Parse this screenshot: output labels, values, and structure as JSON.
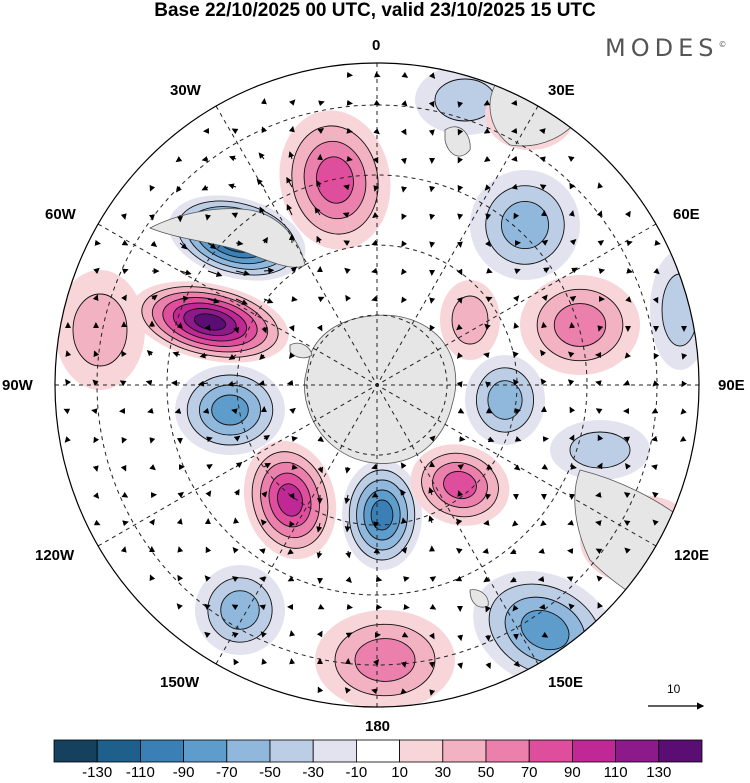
{
  "header": {
    "title": "Base 22/10/2025 00 UTC, valid 23/10/2025 15 UTC",
    "brand": "MODES",
    "brand_mark": "©"
  },
  "map": {
    "projection": "south-polar-stereographic",
    "longitude_labels": {
      "lon_0": "0",
      "lon_30e": "30E",
      "lon_60e": "60E",
      "lon_90e": "90E",
      "lon_120e": "120E",
      "lon_150e": "150E",
      "lon_180": "180",
      "lon_150w": "150W",
      "lon_120w": "120W",
      "lon_90w": "90W",
      "lon_60w": "60W",
      "lon_30w": "30W"
    },
    "reference_vector": {
      "label": "10",
      "magnitude": 10
    },
    "anomaly_centres": [
      {
        "name": "low-60w",
        "value": -130
      },
      {
        "name": "high-80w",
        "value": 130
      },
      {
        "name": "high-10w",
        "value": 70
      },
      {
        "name": "low-40e",
        "value": -50
      },
      {
        "name": "high-70e",
        "value": 50
      },
      {
        "name": "low-100w",
        "value": -60
      },
      {
        "name": "low-95e",
        "value": -50
      },
      {
        "name": "high-130w",
        "value": 90
      },
      {
        "name": "low-170w",
        "value": -90
      },
      {
        "name": "high-145e",
        "value": 70
      },
      {
        "name": "low-150e",
        "value": -70
      },
      {
        "name": "high-175w",
        "value": 40
      }
    ]
  },
  "colorbar": {
    "ticks": [
      "-130",
      "-110",
      "-90",
      "-70",
      "-50",
      "-30",
      "-10",
      "10",
      "30",
      "50",
      "70",
      "90",
      "110",
      "130"
    ],
    "colors": [
      "#15405e",
      "#1f5f8b",
      "#3a7fb5",
      "#5e9ccb",
      "#8fb8dc",
      "#bccde6",
      "#e3e3f0",
      "#ffffff",
      "#f8d5d9",
      "#f3b2c2",
      "#ec80ad",
      "#df4e9c",
      "#c02895",
      "#8c1a8a",
      "#5a0d72"
    ]
  }
}
